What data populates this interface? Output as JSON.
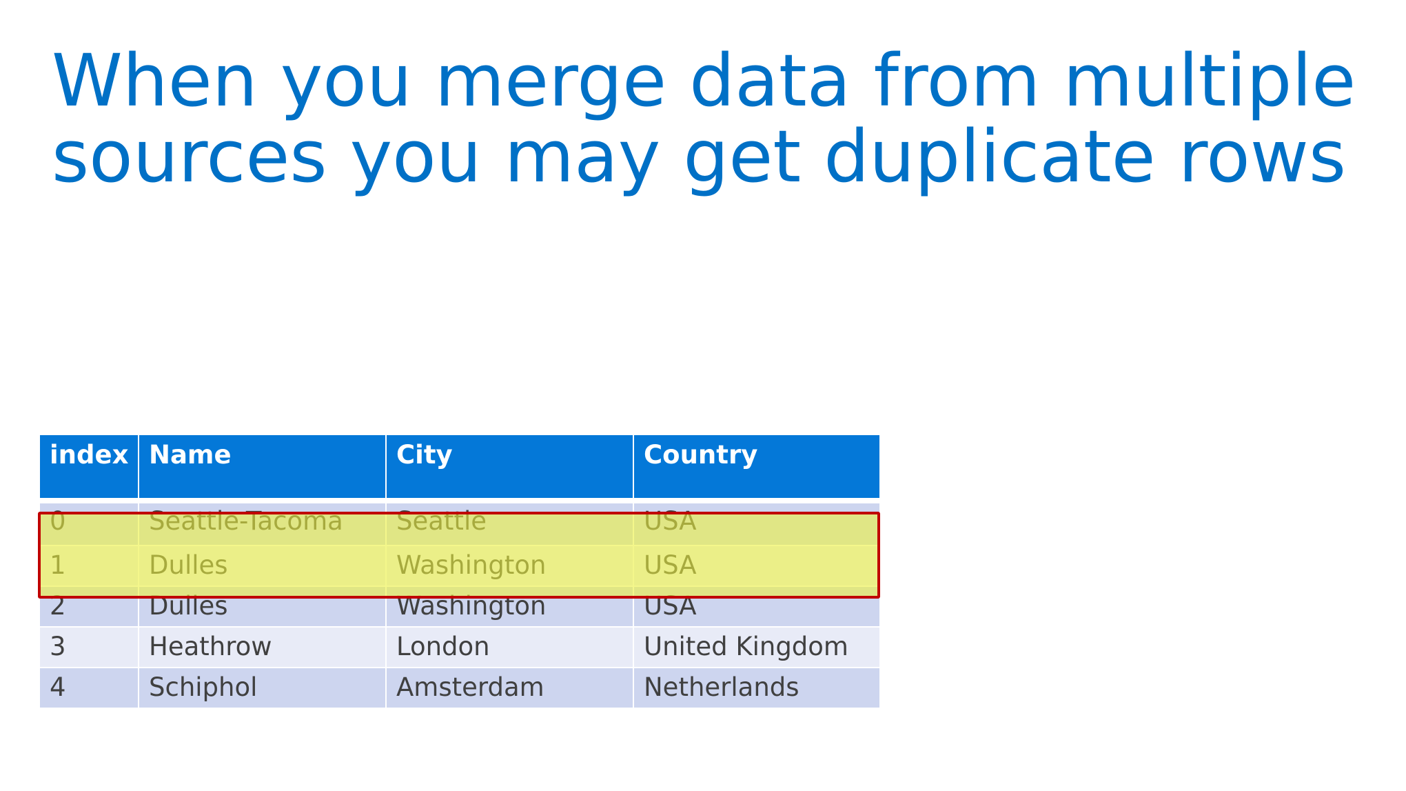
{
  "slide": {
    "title": "When you merge data from multiple sources you may get duplicate rows"
  },
  "table": {
    "headers": {
      "index": "index",
      "name": "Name",
      "city": "City",
      "country": "Country"
    },
    "rows": [
      {
        "index": "0",
        "name": "Seattle-Tacoma",
        "city": "Seattle",
        "country": "USA"
      },
      {
        "index": "1",
        "name": "Dulles",
        "city": "Washington",
        "country": "USA"
      },
      {
        "index": "2",
        "name": "Dulles",
        "city": "Washington",
        "country": "USA"
      },
      {
        "index": "3",
        "name": "Heathrow",
        "city": "London",
        "country": "United Kingdom"
      },
      {
        "index": "4",
        "name": "Schiphol",
        "city": "Amsterdam",
        "country": "Netherlands"
      }
    ]
  },
  "colors": {
    "title": "#0070c6",
    "header_background": "#0478d8",
    "row_dark": "#cdd5ef",
    "row_light": "#e8ebf7",
    "highlight_fill": "#ecf23e",
    "highlight_border": "#c00000"
  }
}
